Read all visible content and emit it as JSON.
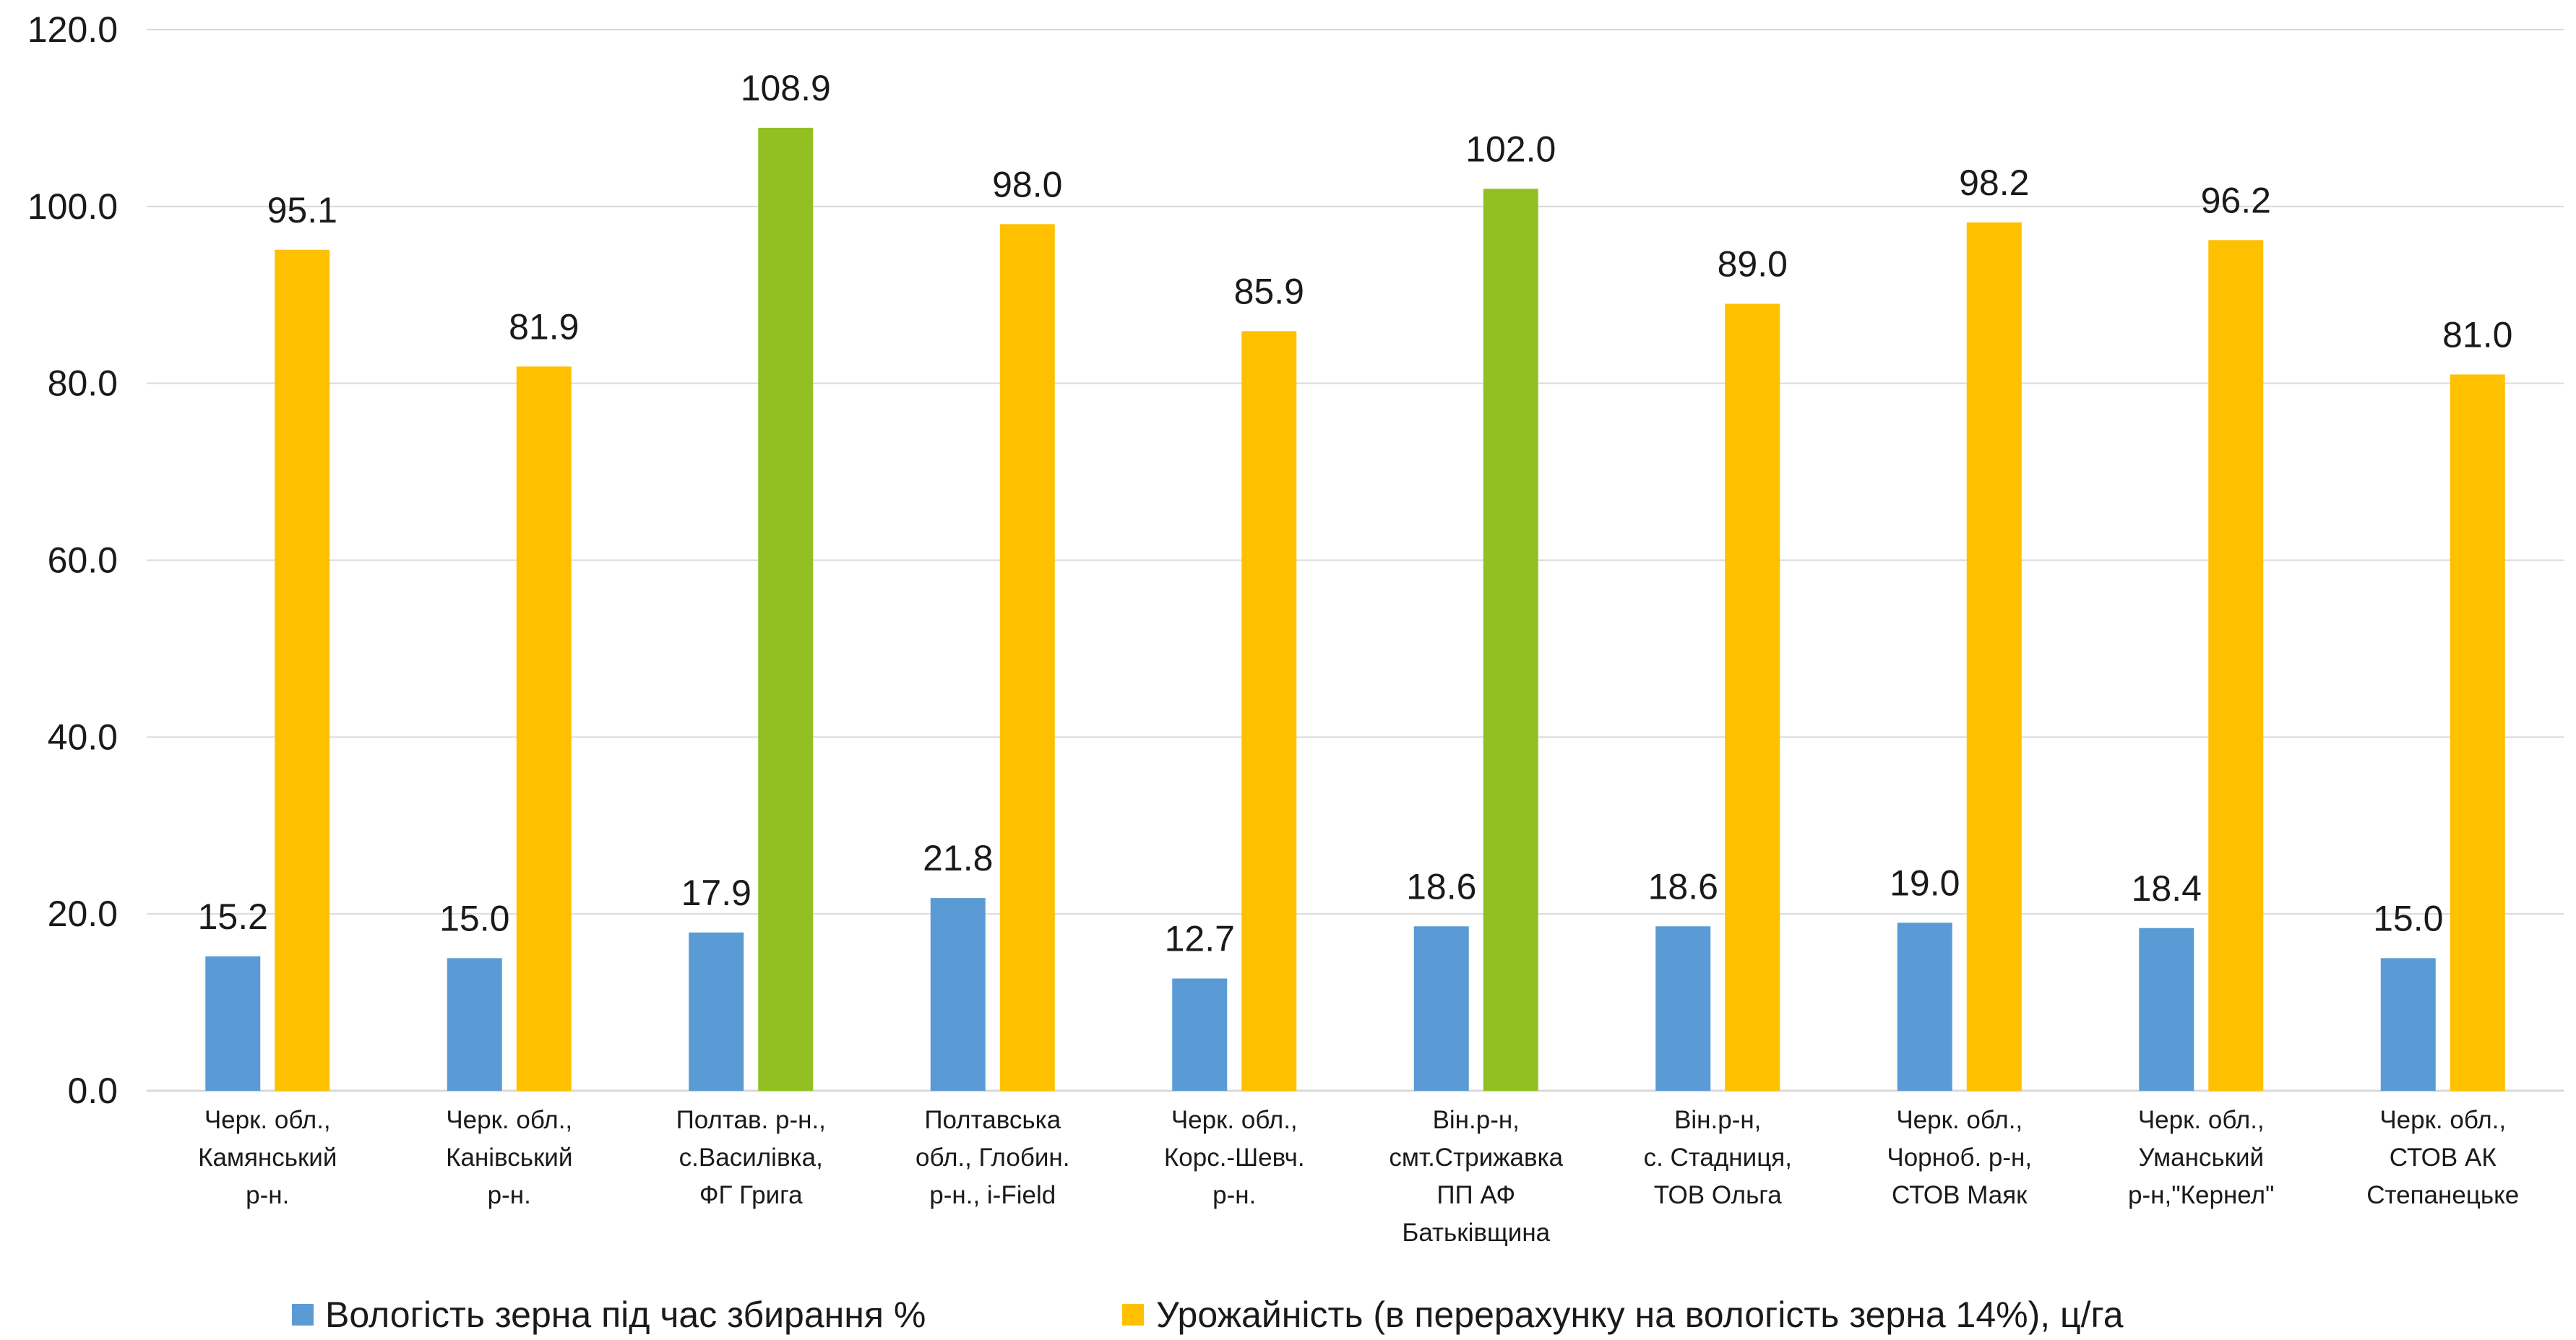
{
  "chart_data": {
    "type": "bar",
    "categories": [
      [
        "Черк. обл.,",
        "Камянський",
        "р-н."
      ],
      [
        "Черк. обл.,",
        "Канівський",
        "р-н."
      ],
      [
        "Полтав. р-н.,",
        "с.Василівка,",
        "ФГ Грига"
      ],
      [
        "Полтавська",
        "обл., Глобин.",
        "р-н., i-Field"
      ],
      [
        "Черк. обл.,",
        "Корс.-Шевч.",
        "р-н."
      ],
      [
        "Він.р-н,",
        "смт.Стрижавка",
        "ПП АФ",
        "Батьківщина"
      ],
      [
        "Він.р-н,",
        "с. Стадниця,",
        "ТОВ Ольга"
      ],
      [
        "Черк. обл.,",
        "Чорноб. р-н,",
        "СТОВ Маяк"
      ],
      [
        "Черк. обл.,",
        "Уманський",
        "р-н,\"Кернел\""
      ],
      [
        "Черк. обл.,",
        "СТОВ АК",
        "Степанецьке"
      ]
    ],
    "series": [
      {
        "name": "Вологість зерна під час збирання %",
        "color": "#5B9BD5",
        "values": [
          15.2,
          15.0,
          17.9,
          21.8,
          12.7,
          18.6,
          18.6,
          19.0,
          18.4,
          15.0
        ],
        "labels": [
          "15.2",
          "15.0",
          "17.9",
          "21.8",
          "12.7",
          "18.6",
          "18.6",
          "19.0",
          "18.4",
          "15.0"
        ]
      },
      {
        "name": "Урожайність (в перерахунку на вологість зерна 14%), ц/га",
        "color": "#FFC000",
        "highlight_color": "#92C023",
        "highlight_indices": [
          2,
          5
        ],
        "values": [
          95.1,
          81.9,
          108.9,
          98.0,
          85.9,
          102.0,
          89.0,
          98.2,
          96.2,
          81.0
        ],
        "labels": [
          "95.1",
          "81.9",
          "108.9",
          "98.0",
          "85.9",
          "102.0",
          "89.0",
          "98.2",
          "96.2",
          "81.0"
        ]
      }
    ],
    "yticks": [
      "0.0",
      "20.0",
      "40.0",
      "60.0",
      "80.0",
      "100.0",
      "120.0"
    ],
    "ylim": [
      0,
      120
    ],
    "grid": true,
    "legend_position": "bottom",
    "gridline_color": "#D9D9D9"
  }
}
